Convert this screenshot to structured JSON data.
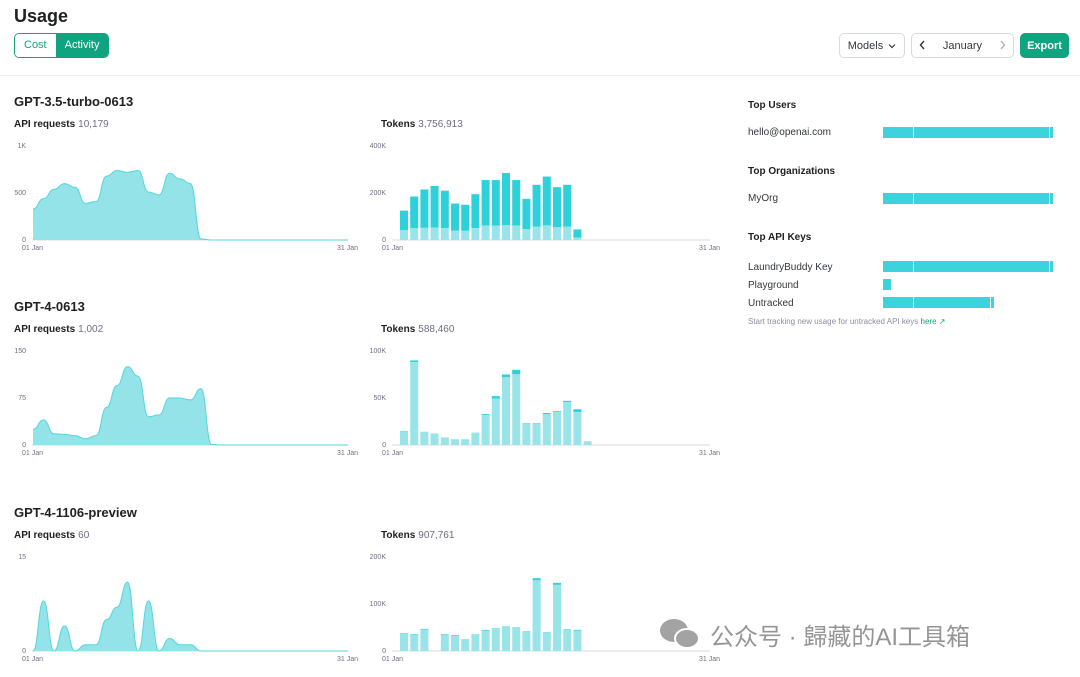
{
  "page": {
    "title": "Usage"
  },
  "toggle": {
    "cost": "Cost",
    "activity": "Activity"
  },
  "header": {
    "models_label": "Models",
    "month": "January",
    "export_label": "Export"
  },
  "sections": [
    {
      "title": "GPT-3.5-turbo-0613",
      "requests_label": "API requests",
      "requests_value": "10,179",
      "tokens_label": "Tokens",
      "tokens_value": "3,756,913",
      "area": {
        "y_max": 1000,
        "y_ticks": [
          "1K",
          "500",
          "0"
        ],
        "values": [
          330,
          440,
          540,
          600,
          560,
          390,
          410,
          680,
          740,
          720,
          740,
          510,
          480,
          710,
          650,
          600,
          10,
          0,
          0,
          0,
          0,
          0,
          0,
          0,
          0,
          0,
          0,
          0,
          0,
          0,
          0
        ]
      },
      "bars": {
        "y_max": 400000,
        "y_ticks": [
          "400K",
          "200K",
          "0"
        ],
        "values": [
          125000,
          185000,
          215000,
          230000,
          210000,
          155000,
          150000,
          195000,
          255000,
          255000,
          285000,
          255000,
          175000,
          235000,
          270000,
          225000,
          235000,
          45000
        ],
        "split": [
          0.33,
          0.27,
          0.24,
          0.23,
          0.24,
          0.26,
          0.26,
          0.26,
          0.24,
          0.24,
          0.22,
          0.24,
          0.26,
          0.24,
          0.23,
          0.24,
          0.24,
          0.22
        ]
      },
      "x_start": "01 Jan",
      "x_end": "31 Jan"
    },
    {
      "title": "GPT-4-0613",
      "requests_label": "API requests",
      "requests_value": "1,002",
      "tokens_label": "Tokens",
      "tokens_value": "588,460",
      "area": {
        "y_max": 150,
        "y_ticks": [
          "150",
          "75",
          "0"
        ],
        "values": [
          25,
          40,
          18,
          17,
          15,
          10,
          15,
          60,
          95,
          125,
          110,
          45,
          48,
          75,
          75,
          72,
          90,
          1,
          0,
          0,
          0,
          0,
          0,
          0,
          0,
          0,
          0,
          0,
          0,
          0,
          0
        ]
      },
      "bars": {
        "y_max": 100000,
        "y_ticks": [
          "100K",
          "50K",
          "0"
        ],
        "values": [
          15000,
          90000,
          14000,
          12000,
          8000,
          6000,
          6000,
          13000,
          33000,
          52000,
          75000,
          80000,
          23000,
          23000,
          34000,
          36000,
          47000,
          38000,
          4000
        ],
        "split": [
          0.97,
          0.98,
          0.97,
          0.97,
          0.97,
          0.97,
          0.97,
          0.97,
          0.97,
          0.95,
          0.96,
          0.94,
          0.97,
          0.97,
          0.97,
          0.97,
          0.97,
          0.92,
          0.97
        ]
      },
      "x_start": "01 Jan",
      "x_end": "31 Jan"
    },
    {
      "title": "GPT-4-1106-preview",
      "requests_label": "API requests",
      "requests_value": "60",
      "tokens_label": "Tokens",
      "tokens_value": "907,761",
      "area": {
        "y_max": 15,
        "y_ticks": [
          "15",
          "",
          "0"
        ],
        "values": [
          0,
          8,
          0,
          4,
          0,
          1,
          1,
          5,
          7,
          11,
          0,
          8,
          0,
          2,
          1,
          1,
          0,
          0,
          0,
          0,
          0,
          0,
          0,
          0,
          0,
          0,
          0,
          0,
          0,
          0,
          0
        ]
      },
      "bars": {
        "y_max": 200000,
        "y_ticks": [
          "200K",
          "100K",
          "0"
        ],
        "values": [
          38000,
          36000,
          47000,
          0,
          36000,
          34000,
          25000,
          35000,
          45000,
          48000,
          52000,
          50000,
          42000,
          155000,
          40000,
          145000,
          46000,
          45000
        ],
        "split": [
          0.97,
          0.97,
          0.97,
          1,
          0.97,
          0.97,
          0.97,
          0.97,
          0.97,
          0.97,
          0.97,
          0.97,
          0.97,
          0.97,
          0.97,
          0.97,
          0.97,
          0.97
        ]
      },
      "x_start": "01 Jan",
      "x_end": "31 Jan"
    }
  ],
  "sidebar": {
    "top_users": {
      "heading": "Top Users",
      "items": [
        {
          "label": "hello@openai.com",
          "share": 1.0
        }
      ]
    },
    "top_orgs": {
      "heading": "Top Organizations",
      "items": [
        {
          "label": "MyOrg",
          "share": 1.0
        }
      ]
    },
    "top_keys": {
      "heading": "Top API Keys",
      "items": [
        {
          "label": "LaundryBuddy Key",
          "share": 1.0
        },
        {
          "label": "Playground",
          "share": 0.045
        },
        {
          "label": "Untracked",
          "share": 0.65
        }
      ]
    },
    "note_text": "Start tracking new usage for untracked API keys",
    "note_link": "here ↗"
  },
  "watermark": {
    "text": "公众号 · 歸藏的AI工具箱"
  },
  "colors": {
    "accent": "#10a37f",
    "area_fill": "#93e3e8",
    "area_stroke": "#55d6dd",
    "bar_dark": "#2ed0d9",
    "bar_light": "#98e4e8",
    "axis": "#d9d9e3"
  }
}
